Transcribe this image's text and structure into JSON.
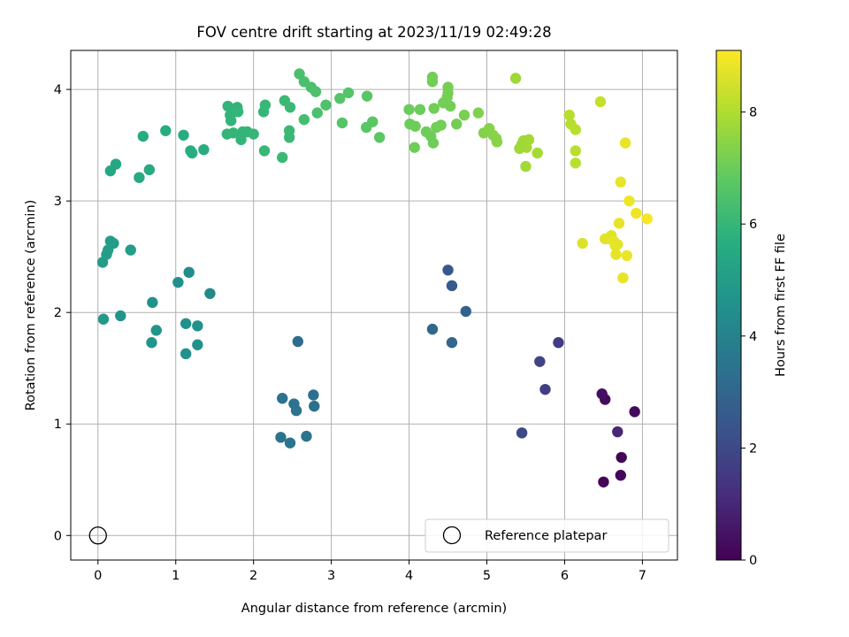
{
  "chart_data": {
    "type": "scatter",
    "title": "FOV centre drift starting at 2023/11/19 02:49:28",
    "xlabel": "Angular distance from reference (arcmin)",
    "ylabel": "Rotation from reference (arcmin)",
    "xlim": [
      -0.35,
      7.45
    ],
    "ylim": [
      -0.22,
      4.35
    ],
    "xticks": [
      0,
      1,
      2,
      3,
      4,
      5,
      6,
      7
    ],
    "xtick_labels": [
      "0",
      "1",
      "2",
      "3",
      "4",
      "5",
      "6",
      "7"
    ],
    "yticks": [
      0,
      1,
      2,
      3,
      4
    ],
    "ytick_labels": [
      "0",
      "1",
      "2",
      "3",
      "4"
    ],
    "grid": true,
    "colorbar": {
      "label": "Hours from first FF file",
      "colormap": "viridis",
      "range": [
        0,
        9.1
      ],
      "ticks": [
        0,
        2,
        4,
        6,
        8
      ],
      "tick_labels": [
        "0",
        "2",
        "4",
        "6",
        "8"
      ]
    },
    "reference": {
      "label": "Reference platepar",
      "x": 0,
      "y": 0
    },
    "legend_placement": "lower-right",
    "points": [
      {
        "x": 6.5,
        "y": 0.48,
        "c": 0.05
      },
      {
        "x": 6.73,
        "y": 0.7,
        "c": 0.1
      },
      {
        "x": 6.72,
        "y": 0.54,
        "c": 0.15
      },
      {
        "x": 6.9,
        "y": 1.11,
        "c": 0.2
      },
      {
        "x": 6.52,
        "y": 1.22,
        "c": 0.3
      },
      {
        "x": 6.48,
        "y": 1.27,
        "c": 0.4
      },
      {
        "x": 6.68,
        "y": 0.93,
        "c": 1.0
      },
      {
        "x": 5.92,
        "y": 1.73,
        "c": 1.6
      },
      {
        "x": 5.75,
        "y": 1.31,
        "c": 1.7
      },
      {
        "x": 5.68,
        "y": 1.56,
        "c": 1.8
      },
      {
        "x": 5.45,
        "y": 0.92,
        "c": 2.0
      },
      {
        "x": 4.5,
        "y": 2.38,
        "c": 2.5
      },
      {
        "x": 4.55,
        "y": 2.24,
        "c": 2.6
      },
      {
        "x": 4.73,
        "y": 2.01,
        "c": 2.8
      },
      {
        "x": 4.3,
        "y": 1.85,
        "c": 3.0
      },
      {
        "x": 4.55,
        "y": 1.73,
        "c": 3.0
      },
      {
        "x": 2.57,
        "y": 1.74,
        "c": 3.2
      },
      {
        "x": 2.77,
        "y": 1.26,
        "c": 3.3
      },
      {
        "x": 2.78,
        "y": 1.16,
        "c": 3.3
      },
      {
        "x": 2.37,
        "y": 1.23,
        "c": 3.4
      },
      {
        "x": 2.52,
        "y": 1.18,
        "c": 3.4
      },
      {
        "x": 2.55,
        "y": 1.12,
        "c": 3.45
      },
      {
        "x": 2.35,
        "y": 0.88,
        "c": 3.5
      },
      {
        "x": 2.47,
        "y": 0.83,
        "c": 3.5
      },
      {
        "x": 2.68,
        "y": 0.89,
        "c": 3.5
      },
      {
        "x": 1.44,
        "y": 2.17,
        "c": 4.3
      },
      {
        "x": 1.17,
        "y": 2.36,
        "c": 4.4
      },
      {
        "x": 1.03,
        "y": 2.27,
        "c": 4.5
      },
      {
        "x": 0.7,
        "y": 2.09,
        "c": 4.6
      },
      {
        "x": 1.13,
        "y": 1.9,
        "c": 4.6
      },
      {
        "x": 1.28,
        "y": 1.88,
        "c": 4.6
      },
      {
        "x": 0.29,
        "y": 1.97,
        "c": 4.7
      },
      {
        "x": 0.07,
        "y": 1.94,
        "c": 4.8
      },
      {
        "x": 0.75,
        "y": 1.84,
        "c": 4.7
      },
      {
        "x": 0.69,
        "y": 1.73,
        "c": 4.7
      },
      {
        "x": 1.28,
        "y": 1.71,
        "c": 4.6
      },
      {
        "x": 1.13,
        "y": 1.63,
        "c": 4.6
      },
      {
        "x": 0.16,
        "y": 2.64,
        "c": 5.0
      },
      {
        "x": 0.2,
        "y": 2.62,
        "c": 5.0
      },
      {
        "x": 0.13,
        "y": 2.56,
        "c": 5.05
      },
      {
        "x": 0.11,
        "y": 2.52,
        "c": 5.05
      },
      {
        "x": 0.42,
        "y": 2.56,
        "c": 5.05
      },
      {
        "x": 0.06,
        "y": 2.45,
        "c": 5.0
      },
      {
        "x": 0.16,
        "y": 3.27,
        "c": 5.4
      },
      {
        "x": 0.23,
        "y": 3.33,
        "c": 5.4
      },
      {
        "x": 0.66,
        "y": 3.28,
        "c": 5.5
      },
      {
        "x": 0.53,
        "y": 3.21,
        "c": 5.5
      },
      {
        "x": 0.58,
        "y": 3.58,
        "c": 5.6
      },
      {
        "x": 0.87,
        "y": 3.63,
        "c": 5.6
      },
      {
        "x": 1.1,
        "y": 3.59,
        "c": 5.6
      },
      {
        "x": 1.19,
        "y": 3.45,
        "c": 5.65
      },
      {
        "x": 1.21,
        "y": 3.43,
        "c": 5.65
      },
      {
        "x": 1.36,
        "y": 3.46,
        "c": 5.65
      },
      {
        "x": 1.67,
        "y": 3.85,
        "c": 5.9
      },
      {
        "x": 1.7,
        "y": 3.77,
        "c": 5.9
      },
      {
        "x": 1.71,
        "y": 3.72,
        "c": 5.9
      },
      {
        "x": 1.79,
        "y": 3.84,
        "c": 5.9
      },
      {
        "x": 1.8,
        "y": 3.8,
        "c": 5.95
      },
      {
        "x": 1.66,
        "y": 3.6,
        "c": 5.95
      },
      {
        "x": 1.74,
        "y": 3.61,
        "c": 5.95
      },
      {
        "x": 1.84,
        "y": 3.55,
        "c": 5.95
      },
      {
        "x": 1.86,
        "y": 3.62,
        "c": 5.95
      },
      {
        "x": 1.92,
        "y": 3.62,
        "c": 5.95
      },
      {
        "x": 2.0,
        "y": 3.6,
        "c": 6.0
      },
      {
        "x": 2.13,
        "y": 3.8,
        "c": 6.0
      },
      {
        "x": 2.15,
        "y": 3.86,
        "c": 6.05
      },
      {
        "x": 2.14,
        "y": 3.45,
        "c": 6.05
      },
      {
        "x": 2.37,
        "y": 3.39,
        "c": 6.1
      },
      {
        "x": 2.4,
        "y": 3.9,
        "c": 6.1
      },
      {
        "x": 2.47,
        "y": 3.84,
        "c": 6.1
      },
      {
        "x": 2.46,
        "y": 3.63,
        "c": 6.1
      },
      {
        "x": 2.46,
        "y": 3.57,
        "c": 6.1
      },
      {
        "x": 2.65,
        "y": 3.73,
        "c": 6.3
      },
      {
        "x": 2.59,
        "y": 4.14,
        "c": 6.4
      },
      {
        "x": 2.65,
        "y": 4.07,
        "c": 6.4
      },
      {
        "x": 2.74,
        "y": 4.02,
        "c": 6.4
      },
      {
        "x": 2.8,
        "y": 3.98,
        "c": 6.45
      },
      {
        "x": 2.82,
        "y": 3.79,
        "c": 6.45
      },
      {
        "x": 2.93,
        "y": 3.86,
        "c": 6.5
      },
      {
        "x": 3.11,
        "y": 3.92,
        "c": 6.6
      },
      {
        "x": 3.14,
        "y": 3.7,
        "c": 6.6
      },
      {
        "x": 3.22,
        "y": 3.97,
        "c": 6.6
      },
      {
        "x": 3.46,
        "y": 3.94,
        "c": 6.7
      },
      {
        "x": 3.45,
        "y": 3.66,
        "c": 6.7
      },
      {
        "x": 3.53,
        "y": 3.71,
        "c": 6.7
      },
      {
        "x": 3.62,
        "y": 3.57,
        "c": 6.75
      },
      {
        "x": 4.0,
        "y": 3.82,
        "c": 7.0
      },
      {
        "x": 4.14,
        "y": 3.82,
        "c": 7.0
      },
      {
        "x": 4.01,
        "y": 3.69,
        "c": 7.0
      },
      {
        "x": 4.08,
        "y": 3.67,
        "c": 7.05
      },
      {
        "x": 4.07,
        "y": 3.48,
        "c": 7.05
      },
      {
        "x": 4.22,
        "y": 3.62,
        "c": 7.05
      },
      {
        "x": 4.28,
        "y": 3.58,
        "c": 7.05
      },
      {
        "x": 4.31,
        "y": 3.52,
        "c": 7.05
      },
      {
        "x": 4.3,
        "y": 4.11,
        "c": 7.1
      },
      {
        "x": 4.3,
        "y": 4.07,
        "c": 7.1
      },
      {
        "x": 4.32,
        "y": 3.83,
        "c": 7.1
      },
      {
        "x": 4.35,
        "y": 3.66,
        "c": 7.1
      },
      {
        "x": 4.41,
        "y": 3.68,
        "c": 7.1
      },
      {
        "x": 4.44,
        "y": 3.88,
        "c": 7.1
      },
      {
        "x": 4.49,
        "y": 3.93,
        "c": 7.15
      },
      {
        "x": 4.5,
        "y": 4.02,
        "c": 7.15
      },
      {
        "x": 4.5,
        "y": 3.97,
        "c": 7.15
      },
      {
        "x": 4.53,
        "y": 3.85,
        "c": 7.15
      },
      {
        "x": 4.61,
        "y": 3.69,
        "c": 7.15
      },
      {
        "x": 4.71,
        "y": 3.77,
        "c": 7.2
      },
      {
        "x": 4.89,
        "y": 3.79,
        "c": 7.3
      },
      {
        "x": 4.96,
        "y": 3.61,
        "c": 7.35
      },
      {
        "x": 5.03,
        "y": 3.65,
        "c": 7.4
      },
      {
        "x": 5.08,
        "y": 3.59,
        "c": 7.4
      },
      {
        "x": 5.12,
        "y": 3.56,
        "c": 7.45
      },
      {
        "x": 5.13,
        "y": 3.53,
        "c": 7.45
      },
      {
        "x": 5.37,
        "y": 4.1,
        "c": 7.75
      },
      {
        "x": 5.42,
        "y": 3.47,
        "c": 7.75
      },
      {
        "x": 5.45,
        "y": 3.51,
        "c": 7.75
      },
      {
        "x": 5.47,
        "y": 3.54,
        "c": 7.75
      },
      {
        "x": 5.5,
        "y": 3.31,
        "c": 7.8
      },
      {
        "x": 5.51,
        "y": 3.48,
        "c": 7.8
      },
      {
        "x": 5.54,
        "y": 3.55,
        "c": 7.8
      },
      {
        "x": 5.65,
        "y": 3.43,
        "c": 7.85
      },
      {
        "x": 6.06,
        "y": 3.77,
        "c": 8.1
      },
      {
        "x": 6.08,
        "y": 3.69,
        "c": 8.1
      },
      {
        "x": 6.14,
        "y": 3.64,
        "c": 8.15
      },
      {
        "x": 6.14,
        "y": 3.45,
        "c": 8.15
      },
      {
        "x": 6.14,
        "y": 3.34,
        "c": 8.15
      },
      {
        "x": 6.46,
        "y": 3.89,
        "c": 8.3
      },
      {
        "x": 6.23,
        "y": 2.62,
        "c": 8.6
      },
      {
        "x": 6.52,
        "y": 2.66,
        "c": 8.7
      },
      {
        "x": 6.58,
        "y": 2.66,
        "c": 8.7
      },
      {
        "x": 6.6,
        "y": 2.69,
        "c": 8.7
      },
      {
        "x": 6.63,
        "y": 2.64,
        "c": 8.75
      },
      {
        "x": 6.65,
        "y": 2.6,
        "c": 8.75
      },
      {
        "x": 6.66,
        "y": 2.52,
        "c": 8.75
      },
      {
        "x": 6.68,
        "y": 2.61,
        "c": 8.75
      },
      {
        "x": 6.7,
        "y": 2.8,
        "c": 8.8
      },
      {
        "x": 6.72,
        "y": 3.17,
        "c": 8.8
      },
      {
        "x": 6.75,
        "y": 2.31,
        "c": 8.8
      },
      {
        "x": 6.78,
        "y": 3.52,
        "c": 8.8
      },
      {
        "x": 6.8,
        "y": 2.51,
        "c": 8.85
      },
      {
        "x": 6.83,
        "y": 3.0,
        "c": 8.9
      },
      {
        "x": 6.92,
        "y": 2.89,
        "c": 8.9
      },
      {
        "x": 7.06,
        "y": 2.84,
        "c": 9.0
      }
    ]
  }
}
